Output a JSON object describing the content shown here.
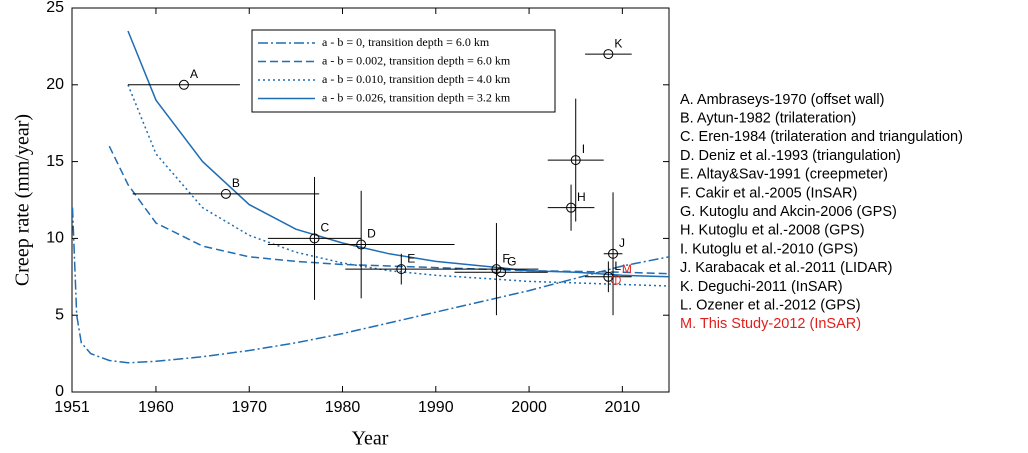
{
  "chart_data": {
    "type": "scatter",
    "xlabel": "Year",
    "ylabel": "Creep rate (mm/year)",
    "xlim": [
      1951,
      2015
    ],
    "ylim": [
      0,
      25
    ],
    "xticks": [
      1951,
      1960,
      1970,
      1980,
      1990,
      2000,
      2010
    ],
    "yticks": [
      0,
      5,
      10,
      15,
      20,
      25
    ],
    "curve_x": [
      1951.05,
      1951.5,
      1952,
      1953,
      1955,
      1957,
      1960,
      1965,
      1970,
      1975,
      1980,
      1985,
      1990,
      1995,
      2000,
      2005,
      2010,
      2015
    ],
    "curves": [
      {
        "name": "a - b = 0, transition depth = 6.0 km",
        "color": "#1f6db3",
        "style": "dashdot",
        "values": [
          12,
          5,
          3.2,
          2.5,
          2.05,
          1.9,
          2.0,
          2.3,
          2.7,
          3.2,
          3.8,
          4.5,
          5.2,
          5.9,
          6.6,
          7.4,
          8.2,
          8.8
        ]
      },
      {
        "name": "a - b = 0.002, transition depth = 6.0 km",
        "color": "#1f6db3",
        "style": "dashed",
        "values": [
          null,
          null,
          null,
          null,
          16,
          13.5,
          11,
          9.5,
          8.8,
          8.5,
          8.3,
          8.2,
          8.1,
          8.0,
          7.9,
          7.85,
          7.8,
          7.7
        ]
      },
      {
        "name": "a - b = 0.010, transition depth = 4.0 km",
        "color": "#1f6db3",
        "style": "dotted",
        "values": [
          null,
          null,
          null,
          null,
          null,
          20,
          15.5,
          12,
          10.2,
          9.1,
          8.4,
          7.9,
          7.6,
          7.4,
          7.2,
          7.1,
          7.0,
          6.9
        ]
      },
      {
        "name": "a - b = 0.026, transition depth = 3.2 km",
        "color": "#1f6db3",
        "style": "solid",
        "values": [
          null,
          null,
          null,
          null,
          null,
          23.5,
          19,
          15,
          12.2,
          10.6,
          9.7,
          9.0,
          8.5,
          8.2,
          7.9,
          7.8,
          7.6,
          7.5
        ]
      }
    ],
    "points": [
      {
        "label": "A",
        "description": "A. Ambraseys-1970 (offset wall)",
        "color": "#000000",
        "x": 1963,
        "y": 20,
        "xerr": 6,
        "yerr": 0
      },
      {
        "label": "B",
        "description": "B. Aytun-1982 (trilateration)",
        "color": "#000000",
        "x": 1967.5,
        "y": 12.9,
        "xerr": 10,
        "yerr": 0
      },
      {
        "label": "C",
        "description": "C. Eren-1984 (trilateration and triangulation)",
        "color": "#000000",
        "x": 1977,
        "y": 10,
        "xerr": 5,
        "yerr": 4
      },
      {
        "label": "D",
        "description": "D. Deniz et al.-1993 (triangulation)",
        "color": "#000000",
        "x": 1982,
        "y": 9.6,
        "xerr": 10,
        "yerr": 3.5
      },
      {
        "label": "E",
        "description": "E. Altay&Sav-1991 (creepmeter)",
        "color": "#000000",
        "x": 1986.3,
        "y": 8,
        "xerr": 6,
        "yerr": 1
      },
      {
        "label": "F",
        "description": "F. Cakir et al.-2005 (InSAR)",
        "color": "#000000",
        "x": 1996.5,
        "y": 8,
        "xerr": 4.5,
        "yerr": 3
      },
      {
        "label": "G",
        "description": "G. Kutoglu and Akcin-2006 (GPS)",
        "color": "#000000",
        "x": 1997,
        "y": 7.8,
        "xerr": 5,
        "yerr": 0
      },
      {
        "label": "H",
        "description": "H. Kutoglu et al.-2008 (GPS)",
        "color": "#000000",
        "x": 2004.5,
        "y": 12,
        "xerr": 2.5,
        "yerr": 1.5
      },
      {
        "label": "I",
        "description": "I. Kutoglu et al.-2010 (GPS)",
        "color": "#000000",
        "x": 2005,
        "y": 15.1,
        "xerr": 3,
        "yerr": 4
      },
      {
        "label": "J",
        "description": "J. Karabacak et al.-2011 (LIDAR)",
        "color": "#000000",
        "x": 2009,
        "y": 9,
        "xerr": 1,
        "yerr": 4
      },
      {
        "label": "K",
        "description": "K. Deguchi-2011 (InSAR)",
        "color": "#000000",
        "x": 2008.5,
        "y": 22,
        "xerr": 2.5,
        "yerr": 0
      },
      {
        "label": "L",
        "description": "L. Ozener et al.-2012 (GPS)",
        "color": "#000000",
        "x": 2008.5,
        "y": 7.5,
        "xerr": 2.5,
        "yerr": 1
      },
      {
        "label": "M",
        "description": "M. This Study-2012 (InSAR)",
        "color": "#e0201c",
        "x": 2009.3,
        "y": 7.3,
        "xerr": 0,
        "yerr": 0.3
      }
    ]
  }
}
